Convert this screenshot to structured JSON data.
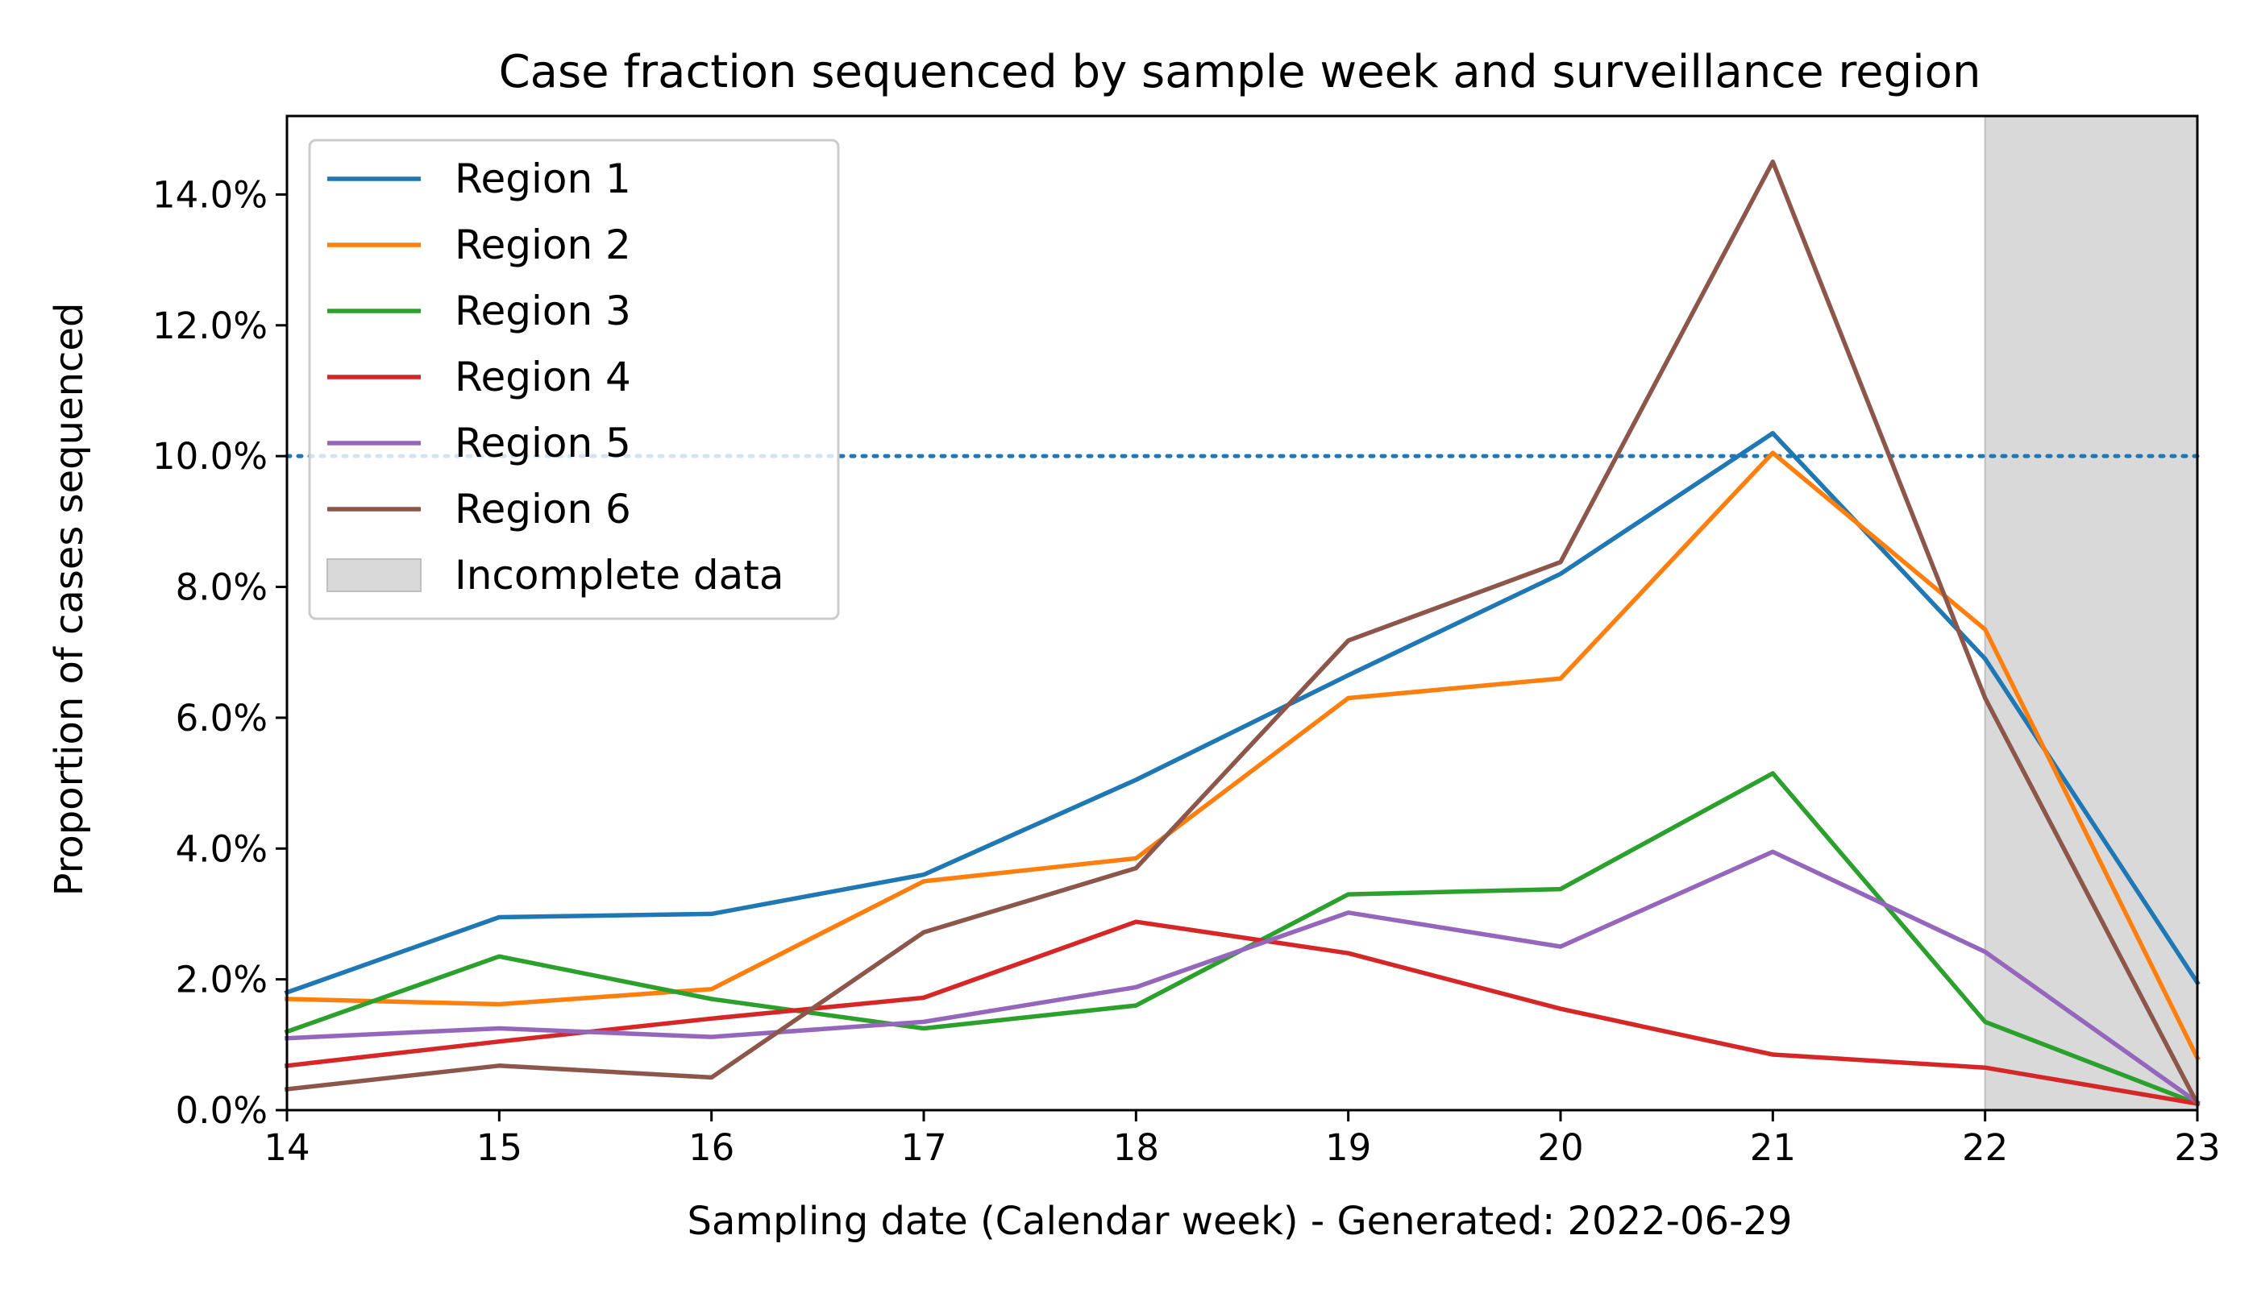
{
  "chart_data": {
    "type": "line",
    "title": "Case fraction sequenced by sample week and surveillance region",
    "xlabel": "Sampling date (Calendar week) - Generated: 2022-06-29",
    "ylabel": "Proportion of cases sequenced",
    "x": [
      14,
      15,
      16,
      17,
      18,
      19,
      20,
      21,
      22,
      23
    ],
    "xlim": [
      14,
      23
    ],
    "ylim": [
      0,
      15.2
    ],
    "x_ticks": [
      "14",
      "15",
      "16",
      "17",
      "18",
      "19",
      "20",
      "21",
      "22",
      "23"
    ],
    "y_ticks": [
      {
        "value": 0,
        "label": "0.0%"
      },
      {
        "value": 2,
        "label": "2.0%"
      },
      {
        "value": 4,
        "label": "4.0%"
      },
      {
        "value": 6,
        "label": "6.0%"
      },
      {
        "value": 8,
        "label": "8.0%"
      },
      {
        "value": 10,
        "label": "10.0%"
      },
      {
        "value": 12,
        "label": "12.0%"
      },
      {
        "value": 14,
        "label": "14.0%"
      }
    ],
    "grid": false,
    "legend_position": "top-left",
    "reference_line": {
      "y": 10,
      "style": "dotted",
      "color": "#1f77b4"
    },
    "shaded_region": {
      "x_start": 22,
      "x_end": 23,
      "label": "Incomplete data",
      "color": "#d9d9d9"
    },
    "series": [
      {
        "name": "Region 1",
        "color": "#1f77b4",
        "values": [
          1.8,
          2.95,
          3.0,
          3.6,
          5.05,
          6.65,
          8.2,
          10.35,
          6.9,
          1.95
        ]
      },
      {
        "name": "Region 2",
        "color": "#ff7f0e",
        "values": [
          1.7,
          1.62,
          1.85,
          3.5,
          3.85,
          6.3,
          6.6,
          10.05,
          7.35,
          0.8
        ]
      },
      {
        "name": "Region 3",
        "color": "#2ca02c",
        "values": [
          1.2,
          2.35,
          1.7,
          1.25,
          1.6,
          3.3,
          3.38,
          5.15,
          1.35,
          0.1
        ]
      },
      {
        "name": "Region 4",
        "color": "#d62728",
        "values": [
          0.68,
          1.05,
          1.4,
          1.72,
          2.88,
          2.4,
          1.55,
          0.85,
          0.65,
          0.1
        ]
      },
      {
        "name": "Region 5",
        "color": "#9467bd",
        "values": [
          1.1,
          1.25,
          1.12,
          1.35,
          1.88,
          3.02,
          2.5,
          3.95,
          2.42,
          0.12
        ]
      },
      {
        "name": "Region 6",
        "color": "#8c564b",
        "values": [
          0.32,
          0.68,
          0.5,
          2.72,
          3.7,
          7.18,
          8.38,
          14.5,
          6.3,
          0.1
        ]
      }
    ]
  }
}
